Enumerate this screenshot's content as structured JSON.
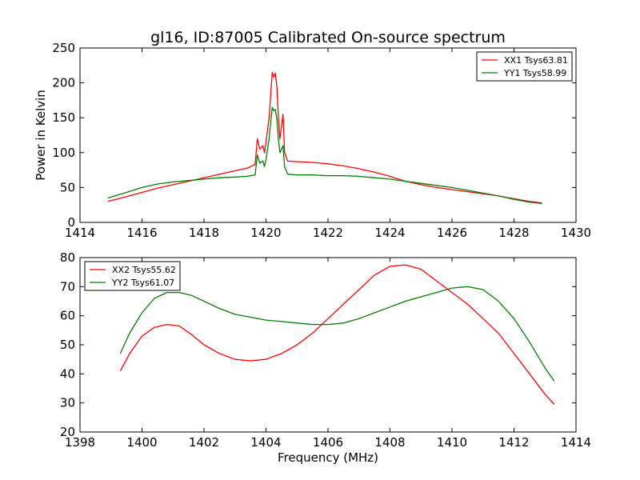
{
  "title": "gl16, ID:87005 Calibrated On-source spectrum",
  "chart_data": [
    {
      "type": "line",
      "title": "gl16, ID:87005 Calibrated On-source spectrum",
      "xlabel": "",
      "ylabel": "Power in Kelvin",
      "xlim": [
        1414,
        1430
      ],
      "ylim": [
        0,
        250
      ],
      "xticks": [
        "1414",
        "1416",
        "1418",
        "1420",
        "1422",
        "1424",
        "1426",
        "1428",
        "1430"
      ],
      "yticks": [
        "0",
        "50",
        "100",
        "150",
        "200",
        "250"
      ],
      "grid": false,
      "legend_position": "top-right",
      "series": [
        {
          "name": "XX1 Tsys63.81",
          "color": "#ff0000",
          "x": [
            1414.9,
            1415.5,
            1416,
            1416.5,
            1417,
            1417.5,
            1418,
            1418.5,
            1419,
            1419.4,
            1419.65,
            1419.72,
            1419.8,
            1419.9,
            1419.95,
            1420.0,
            1420.1,
            1420.2,
            1420.25,
            1420.3,
            1420.35,
            1420.4,
            1420.45,
            1420.55,
            1420.6,
            1420.7,
            1421,
            1421.5,
            1422,
            1422.5,
            1423,
            1423.5,
            1424,
            1424.5,
            1425,
            1425.5,
            1426,
            1426.5,
            1427,
            1427.5,
            1428,
            1428.5,
            1428.9
          ],
          "y": [
            30,
            37,
            43,
            49,
            54,
            59,
            64,
            69,
            74,
            78,
            83,
            120,
            105,
            110,
            100,
            115,
            150,
            215,
            208,
            214,
            195,
            150,
            120,
            155,
            100,
            88,
            87,
            86,
            84,
            81,
            77,
            72,
            66,
            59,
            54,
            50,
            47,
            44,
            41,
            38,
            34,
            30,
            28
          ]
        },
        {
          "name": "YY1 Tsys58.99",
          "color": "#008000",
          "x": [
            1414.9,
            1415.5,
            1416,
            1416.5,
            1417,
            1417.5,
            1418,
            1418.5,
            1419,
            1419.4,
            1419.65,
            1419.72,
            1419.8,
            1419.9,
            1419.95,
            1420.0,
            1420.1,
            1420.2,
            1420.25,
            1420.3,
            1420.35,
            1420.4,
            1420.45,
            1420.55,
            1420.6,
            1420.7,
            1421,
            1421.5,
            1422,
            1422.5,
            1423,
            1423.5,
            1424,
            1424.5,
            1425,
            1425.5,
            1426,
            1426.5,
            1427,
            1427.5,
            1428,
            1428.5,
            1428.9
          ],
          "y": [
            35,
            43,
            50,
            55,
            58,
            60,
            62,
            64,
            65,
            66,
            68,
            97,
            85,
            88,
            80,
            90,
            120,
            165,
            160,
            162,
            148,
            120,
            100,
            110,
            80,
            69,
            68,
            68,
            67,
            67,
            66,
            64,
            62,
            59,
            56,
            53,
            50,
            46,
            42,
            38,
            33,
            29,
            27
          ]
        }
      ]
    },
    {
      "type": "line",
      "title": "",
      "xlabel": "Frequency (MHz)",
      "ylabel": "",
      "xlim": [
        1398,
        1414
      ],
      "ylim": [
        20,
        80
      ],
      "xticks": [
        "1398",
        "1400",
        "1402",
        "1404",
        "1406",
        "1408",
        "1410",
        "1412",
        "1414"
      ],
      "yticks": [
        "20",
        "30",
        "40",
        "50",
        "60",
        "70",
        "80"
      ],
      "grid": false,
      "legend_position": "top-left",
      "series": [
        {
          "name": "XX2 Tsys55.62",
          "color": "#ff0000",
          "x": [
            1399.3,
            1399.6,
            1400,
            1400.4,
            1400.8,
            1401.2,
            1401.6,
            1402,
            1402.5,
            1403,
            1403.5,
            1404,
            1404.5,
            1405,
            1405.5,
            1406,
            1406.5,
            1407,
            1407.5,
            1408,
            1408.5,
            1409,
            1409.5,
            1410,
            1410.5,
            1411,
            1411.5,
            1412,
            1412.5,
            1413,
            1413.3
          ],
          "y": [
            41,
            47,
            53,
            56,
            57,
            56.5,
            53.5,
            50,
            47,
            45,
            44.5,
            45,
            47,
            50,
            54,
            59,
            64,
            69,
            74,
            77,
            77.5,
            76,
            72,
            68,
            64,
            59,
            54,
            47,
            40,
            33,
            29.5
          ]
        },
        {
          "name": "YY2 Tsys61.07",
          "color": "#008000",
          "x": [
            1399.3,
            1399.6,
            1400,
            1400.4,
            1400.8,
            1401.2,
            1401.6,
            1402,
            1402.5,
            1403,
            1403.5,
            1404,
            1404.5,
            1405,
            1405.5,
            1406,
            1406.5,
            1407,
            1407.5,
            1408,
            1408.5,
            1409,
            1409.5,
            1410,
            1410.5,
            1411,
            1411.5,
            1412,
            1412.5,
            1413,
            1413.3
          ],
          "y": [
            47,
            54,
            61,
            66,
            68,
            68,
            67,
            65,
            62.5,
            60.5,
            59.5,
            58.5,
            58,
            57.5,
            57,
            57,
            57.5,
            59,
            61,
            63,
            65,
            66.5,
            68,
            69.5,
            70,
            69,
            65,
            59,
            51,
            42,
            37.5
          ]
        }
      ]
    }
  ]
}
